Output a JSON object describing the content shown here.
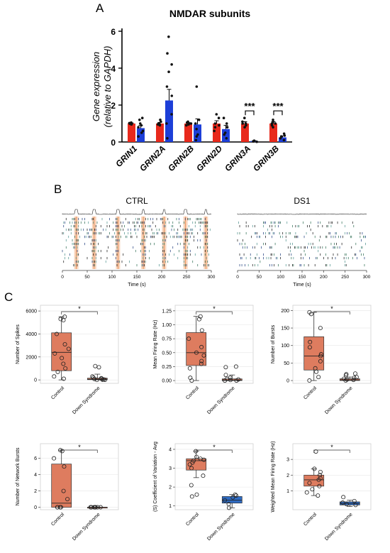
{
  "panels": {
    "A": {
      "letter": "A",
      "chart_data": {
        "type": "bar",
        "title": "NMDAR subunits",
        "ylabel_line1": "Gene expression",
        "ylabel_line2": "(relative to GAPDH)",
        "ylim": [
          0,
          6
        ],
        "yticks": [
          0,
          2,
          4,
          6
        ],
        "categories": [
          "GRIN1",
          "GRIN2A",
          "GRIN2B",
          "GRIN2D",
          "GRIN3A",
          "GRIN3B"
        ],
        "series": [
          {
            "color": "#e8291c",
            "values": [
              1.0,
              1.0,
              1.0,
              1.0,
              1.0,
              1.0
            ],
            "errors": [
              0.03,
              0.06,
              0.05,
              0.15,
              0.1,
              0.1
            ],
            "points": [
              [
                0.95,
                1.0,
                1.02,
                0.98,
                1.05,
                0.97
              ],
              [
                0.9,
                1.0,
                1.1,
                0.95,
                1.2,
                0.95
              ],
              [
                0.95,
                1.0,
                1.05,
                0.9,
                1.0,
                1.1
              ],
              [
                0.6,
                0.9,
                1.0,
                1.3,
                1.5,
                0.8
              ],
              [
                0.8,
                1.0,
                1.1,
                1.3,
                0.9,
                1.0
              ],
              [
                0.8,
                1.0,
                1.1,
                1.2,
                0.9,
                1.0
              ]
            ]
          },
          {
            "color": "#1d3fd8",
            "values": [
              0.75,
              2.25,
              0.95,
              0.7,
              0.05,
              0.25
            ],
            "errors": [
              0.15,
              0.6,
              0.3,
              0.2,
              0.02,
              0.08
            ],
            "points": [
              [
                0.3,
                0.6,
                0.9,
                1.0,
                1.2,
                1.3,
                0.5,
                0.8
              ],
              [
                0.2,
                1.0,
                1.5,
                2.5,
                3.0,
                3.8,
                4.2,
                4.8,
                5.7
              ],
              [
                0.1,
                0.4,
                0.7,
                1.0,
                1.2,
                3.0,
                0.3
              ],
              [
                0.2,
                0.5,
                0.8,
                1.0,
                1.3,
                0.4
              ],
              [
                0.01,
                0.03,
                0.05,
                0.07
              ],
              [
                0.1,
                0.2,
                0.3,
                0.45,
                0.35
              ]
            ]
          }
        ],
        "significance": [
          {
            "category": "GRIN3A",
            "label": "***"
          },
          {
            "category": "GRIN3B",
            "label": "***"
          }
        ]
      }
    },
    "B": {
      "letter": "B",
      "rasters": [
        {
          "title": "CTRL",
          "xlabel": "Time (s)",
          "xticks": [
            0,
            50,
            100,
            150,
            200,
            250,
            300
          ],
          "bursts": [
            28,
            64,
            112,
            163,
            205,
            248,
            289
          ]
        },
        {
          "title": "DS1",
          "xlabel": "Time (s)",
          "xticks": [
            0,
            50,
            100,
            150,
            200,
            250,
            300
          ],
          "bursts": []
        }
      ]
    },
    "C": {
      "letter": "C",
      "chart_data": [
        {
          "type": "box",
          "ylabel": "Number of Spikes",
          "yticks": [
            0,
            2000,
            4000,
            6000
          ],
          "ylim": [
            -300,
            6500
          ],
          "categories": [
            "Control",
            "Down Syndrome"
          ],
          "sig": "*",
          "groups": [
            {
              "q1": 800,
              "median": 2400,
              "q3": 4100,
              "lo": 0,
              "hi": 5500,
              "color": "#de7c5f",
              "points": [
                5500,
                5300,
                5200,
                4000,
                3100,
                2700,
                2300,
                1900,
                1400,
                1000,
                700,
                300,
                100
              ]
            },
            {
              "q1": 20,
              "median": 60,
              "q3": 150,
              "lo": 0,
              "hi": 500,
              "color": "#de7c5f",
              "points": [
                1200,
                1100,
                300,
                200,
                150,
                100,
                80,
                40,
                20,
                10,
                0
              ]
            }
          ]
        },
        {
          "type": "box",
          "ylabel": "Mean Firing Rate (Hz)",
          "yticks": [
            0.0,
            0.25,
            0.5,
            0.75,
            1.0,
            1.25
          ],
          "ylim": [
            -0.05,
            1.35
          ],
          "categories": [
            "Control",
            "Down Syndrome"
          ],
          "sig": "*",
          "groups": [
            {
              "q1": 0.27,
              "median": 0.5,
              "q3": 0.86,
              "lo": 0.0,
              "hi": 1.15,
              "color": "#de7c5f",
              "points": [
                1.15,
                1.1,
                0.9,
                0.75,
                0.6,
                0.5,
                0.45,
                0.35,
                0.3,
                0.22,
                0.05,
                0.0
              ]
            },
            {
              "q1": 0.0,
              "median": 0.01,
              "q3": 0.03,
              "lo": 0.0,
              "hi": 0.1,
              "color": "#de7c5f",
              "points": [
                0.25,
                0.24,
                0.1,
                0.05,
                0.03,
                0.02,
                0.01,
                0.0,
                0.0
              ]
            }
          ]
        },
        {
          "type": "box",
          "ylabel": "Number of Bursts",
          "yticks": [
            0,
            50,
            100,
            150,
            200
          ],
          "ylim": [
            -8,
            215
          ],
          "categories": [
            "Control",
            "Down Syndrome"
          ],
          "sig": "*",
          "groups": [
            {
              "q1": 30,
              "median": 70,
              "q3": 125,
              "lo": 0,
              "hi": 195,
              "color": "#de7c5f",
              "points": [
                195,
                190,
                150,
                110,
                95,
                75,
                70,
                55,
                35,
                25,
                10,
                0
              ]
            },
            {
              "q1": 0,
              "median": 2,
              "q3": 5,
              "lo": 0,
              "hi": 10,
              "color": "#de7c5f",
              "points": [
                20,
                18,
                15,
                10,
                8,
                5,
                3,
                2,
                0
              ]
            }
          ]
        },
        {
          "type": "box",
          "ylabel": "Number of Network Bursts",
          "yticks": [
            0,
            2,
            4,
            6
          ],
          "ylim": [
            -0.3,
            7.8
          ],
          "categories": [
            "Control",
            "Down Syndrome"
          ],
          "sig": "*",
          "groups": [
            {
              "q1": 0.0,
              "median": 0.5,
              "q3": 5.3,
              "lo": 0.0,
              "hi": 7.0,
              "color": "#de7c5f",
              "points": [
                7.0,
                6.9,
                6.0,
                5.0,
                2.0,
                1.0,
                0.0,
                0.0,
                0.0,
                0.0
              ]
            },
            {
              "q1": 0.0,
              "median": 0.0,
              "q3": 0.0,
              "lo": 0.0,
              "hi": 0.0,
              "color": "#de7c5f",
              "points": [
                0,
                0,
                0,
                0,
                0,
                0,
                0
              ]
            }
          ]
        },
        {
          "type": "box",
          "ylabel": "(S) Coefficient of Variation - Avg",
          "yticks": [
            1,
            2,
            3,
            4
          ],
          "ylim": [
            0.8,
            4.3
          ],
          "categories": [
            "Control",
            "Down Syndrome"
          ],
          "sig": "*",
          "groups": [
            {
              "q1": 2.9,
              "median": 3.4,
              "q3": 3.5,
              "lo": 2.5,
              "hi": 3.9,
              "color": "#de7c5f",
              "points": [
                3.9,
                3.6,
                3.5,
                3.45,
                3.4,
                3.3,
                3.2,
                3.0,
                2.6,
                2.1,
                1.6,
                1.5
              ]
            },
            {
              "q1": 1.15,
              "median": 1.3,
              "q3": 1.5,
              "lo": 0.9,
              "hi": 1.6,
              "color": "#2f6cc4",
              "points": [
                1.6,
                1.55,
                1.45,
                1.3,
                1.1,
                0.9
              ]
            }
          ]
        },
        {
          "type": "box",
          "ylabel": "Weighted Mean Firing Rate (Hz)",
          "yticks": [
            1,
            2,
            3
          ],
          "ylim": [
            -0.2,
            4.0
          ],
          "categories": [
            "Control",
            "Down Syndrome"
          ],
          "sig": "*",
          "groups": [
            {
              "q1": 1.3,
              "median": 1.7,
              "q3": 2.0,
              "lo": 0.7,
              "hi": 2.4,
              "color": "#de7c5f",
              "points": [
                3.5,
                2.4,
                2.2,
                2.0,
                1.8,
                1.7,
                1.5,
                1.3,
                1.1,
                0.9,
                0.7
              ]
            },
            {
              "q1": 0.1,
              "median": 0.2,
              "q3": 0.3,
              "lo": 0.0,
              "hi": 0.4,
              "color": "#2f6cc4",
              "points": [
                0.6,
                0.35,
                0.25,
                0.15,
                0.1
              ]
            }
          ]
        }
      ]
    }
  }
}
